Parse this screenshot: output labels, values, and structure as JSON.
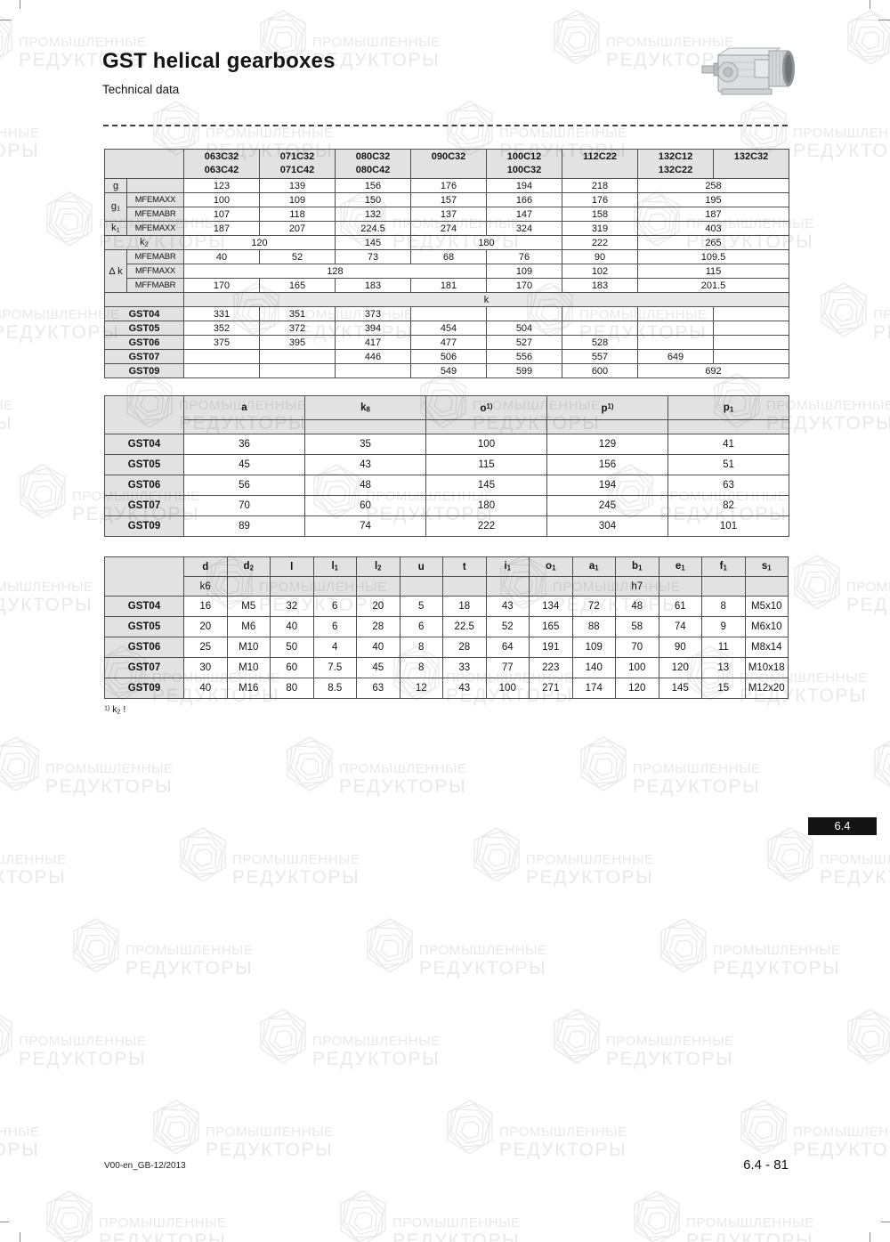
{
  "doc": {
    "title": "GST helical gearboxes",
    "subtitle": "Technical data"
  },
  "watermark": {
    "line1": "ПРОМЫШЛЕННЫЕ",
    "line2": "РЕДУКТОРЫ"
  },
  "colors": {
    "badge_bg": "#141414",
    "badge_text": "#ffffff",
    "header_fill": "#e1e1e1",
    "border": "#4f4f4f"
  },
  "table1": {
    "head": [
      [
        {
          "t": "",
          "cs": 2,
          "cls": "lab"
        },
        {
          "t": "063C32\n063C42"
        },
        {
          "t": "071C32\n071C42"
        },
        {
          "t": "080C32\n080C42"
        },
        {
          "t": "090C32"
        },
        {
          "t": "100C12\n100C32"
        },
        {
          "t": "112C22"
        },
        {
          "t": "132C12\n132C22"
        },
        {
          "t": "132C32"
        }
      ]
    ],
    "body": [
      [
        {
          "t": "g",
          "cls": "lab"
        },
        {
          "t": "",
          "cls": "lab"
        },
        {
          "t": "123"
        },
        {
          "t": "139"
        },
        {
          "t": "156"
        },
        {
          "t": "176"
        },
        {
          "t": "194"
        },
        {
          "t": "218"
        },
        {
          "t": "258",
          "cs": 2
        }
      ],
      [
        {
          "t": "g~1~",
          "cls": "lab",
          "rs": 2
        },
        {
          "t": "MFEMAXX",
          "cls": "lab s"
        },
        {
          "t": "100"
        },
        {
          "t": "109"
        },
        {
          "t": "150"
        },
        {
          "t": "157"
        },
        {
          "t": "166"
        },
        {
          "t": "176"
        },
        {
          "t": "195",
          "cs": 2
        }
      ],
      [
        {
          "t": "MFEMABR",
          "cls": "lab s"
        },
        {
          "t": "107"
        },
        {
          "t": "118"
        },
        {
          "t": "132"
        },
        {
          "t": "137"
        },
        {
          "t": "147"
        },
        {
          "t": "158"
        },
        {
          "t": "187",
          "cs": 2
        }
      ],
      [
        {
          "t": "k~1~",
          "cls": "lab"
        },
        {
          "t": "MFEMAXX",
          "cls": "lab s"
        },
        {
          "t": "187"
        },
        {
          "t": "207"
        },
        {
          "t": "224.5"
        },
        {
          "t": "274"
        },
        {
          "t": "324"
        },
        {
          "t": "319"
        },
        {
          "t": "403",
          "cs": 2
        }
      ],
      [
        {
          "t": "k~2~",
          "cls": "lab",
          "cs": 2
        },
        {
          "t": "120",
          "cs": 2
        },
        {
          "t": "145"
        },
        {
          "t": "180",
          "cs": 2
        },
        {
          "t": "222"
        },
        {
          "t": "265",
          "cs": 2
        }
      ],
      [
        {
          "t": "Δ k",
          "cls": "lab",
          "rs": 3
        },
        {
          "t": "MFEMABR",
          "cls": "lab s"
        },
        {
          "t": "40"
        },
        {
          "t": "52"
        },
        {
          "t": "73"
        },
        {
          "t": "68"
        },
        {
          "t": "76"
        },
        {
          "t": "90"
        },
        {
          "t": "109.5",
          "cs": 2
        }
      ],
      [
        {
          "t": "MFFMAXX",
          "cls": "lab s"
        },
        {
          "t": "128",
          "cs": 4
        },
        {
          "t": "109"
        },
        {
          "t": "102"
        },
        {
          "t": "115",
          "cs": 2
        }
      ],
      [
        {
          "t": "MFFMABR",
          "cls": "lab s"
        },
        {
          "t": "170"
        },
        {
          "t": "165"
        },
        {
          "t": "183"
        },
        {
          "t": "181"
        },
        {
          "t": "170"
        },
        {
          "t": "183"
        },
        {
          "t": "201.5",
          "cs": 2
        }
      ],
      [
        {
          "t": "",
          "cls": "lab",
          "cs": 2
        },
        {
          "t": "k",
          "cs": 8,
          "cls": "band"
        }
      ],
      [
        {
          "t": "GST04",
          "cls": "lab b",
          "cs": 2
        },
        {
          "t": "331"
        },
        {
          "t": "351"
        },
        {
          "t": "373"
        },
        {
          "t": ""
        },
        {
          "t": ""
        },
        {
          "t": ""
        },
        {
          "t": ""
        },
        {
          "t": ""
        }
      ],
      [
        {
          "t": "GST05",
          "cls": "lab b",
          "cs": 2
        },
        {
          "t": "352"
        },
        {
          "t": "372"
        },
        {
          "t": "394"
        },
        {
          "t": "454"
        },
        {
          "t": "504"
        },
        {
          "t": ""
        },
        {
          "t": ""
        },
        {
          "t": ""
        }
      ],
      [
        {
          "t": "GST06",
          "cls": "lab b",
          "cs": 2
        },
        {
          "t": "375"
        },
        {
          "t": "395"
        },
        {
          "t": "417"
        },
        {
          "t": "477"
        },
        {
          "t": "527"
        },
        {
          "t": "528"
        },
        {
          "t": ""
        },
        {
          "t": ""
        }
      ],
      [
        {
          "t": "GST07",
          "cls": "lab b",
          "cs": 2
        },
        {
          "t": ""
        },
        {
          "t": ""
        },
        {
          "t": "446"
        },
        {
          "t": "506"
        },
        {
          "t": "556"
        },
        {
          "t": "557"
        },
        {
          "t": "649"
        },
        {
          "t": ""
        }
      ],
      [
        {
          "t": "GST09",
          "cls": "lab b",
          "cs": 2
        },
        {
          "t": ""
        },
        {
          "t": ""
        },
        {
          "t": ""
        },
        {
          "t": "549"
        },
        {
          "t": "599"
        },
        {
          "t": "600"
        },
        {
          "t": "692",
          "cs": 2
        }
      ]
    ]
  },
  "table2": {
    "head": [
      [
        {
          "t": "",
          "cls": "lab",
          "rs": 2
        },
        {
          "t": "a"
        },
        {
          "t": "k~8~"
        },
        {
          "t": "o^1)^"
        },
        {
          "t": "p^1)^"
        },
        {
          "t": "p~1~"
        }
      ],
      [
        {
          "t": ""
        },
        {
          "t": ""
        },
        {
          "t": ""
        },
        {
          "t": ""
        },
        {
          "t": ""
        }
      ]
    ],
    "body": [
      [
        {
          "t": "GST04",
          "cls": "lab b"
        },
        {
          "t": "36"
        },
        {
          "t": "35"
        },
        {
          "t": "100"
        },
        {
          "t": "129"
        },
        {
          "t": "41"
        }
      ],
      [
        {
          "t": "GST05",
          "cls": "lab b"
        },
        {
          "t": "45"
        },
        {
          "t": "43"
        },
        {
          "t": "115"
        },
        {
          "t": "156"
        },
        {
          "t": "51"
        }
      ],
      [
        {
          "t": "GST06",
          "cls": "lab b"
        },
        {
          "t": "56"
        },
        {
          "t": "48"
        },
        {
          "t": "145"
        },
        {
          "t": "194"
        },
        {
          "t": "63"
        }
      ],
      [
        {
          "t": "GST07",
          "cls": "lab b"
        },
        {
          "t": "70"
        },
        {
          "t": "60"
        },
        {
          "t": "180"
        },
        {
          "t": "245"
        },
        {
          "t": "82"
        }
      ],
      [
        {
          "t": "GST09",
          "cls": "lab b"
        },
        {
          "t": "89"
        },
        {
          "t": "74"
        },
        {
          "t": "222"
        },
        {
          "t": "304"
        },
        {
          "t": "101"
        }
      ]
    ]
  },
  "table3": {
    "head": [
      [
        {
          "t": "",
          "cls": "lab",
          "rs": 2
        },
        {
          "t": "d"
        },
        {
          "t": "d~2~"
        },
        {
          "t": "l"
        },
        {
          "t": "l~1~"
        },
        {
          "t": "l~2~"
        },
        {
          "t": "u"
        },
        {
          "t": "t"
        },
        {
          "t": "i~1~"
        },
        {
          "t": "o~1~"
        },
        {
          "t": "a~1~"
        },
        {
          "t": "b~1~"
        },
        {
          "t": "e~1~"
        },
        {
          "t": "f~1~"
        },
        {
          "t": "s~1~"
        }
      ],
      [
        {
          "t": "k6"
        },
        {
          "t": ""
        },
        {
          "t": ""
        },
        {
          "t": ""
        },
        {
          "t": ""
        },
        {
          "t": ""
        },
        {
          "t": ""
        },
        {
          "t": ""
        },
        {
          "t": ""
        },
        {
          "t": ""
        },
        {
          "t": "h7"
        },
        {
          "t": ""
        },
        {
          "t": ""
        },
        {
          "t": ""
        }
      ]
    ],
    "body": [
      [
        {
          "t": "GST04",
          "cls": "lab b"
        },
        {
          "t": "16"
        },
        {
          "t": "M5"
        },
        {
          "t": "32"
        },
        {
          "t": "6"
        },
        {
          "t": "20"
        },
        {
          "t": "5"
        },
        {
          "t": "18"
        },
        {
          "t": "43"
        },
        {
          "t": "134"
        },
        {
          "t": "72"
        },
        {
          "t": "48"
        },
        {
          "t": "61"
        },
        {
          "t": "8"
        },
        {
          "t": "M5x10"
        }
      ],
      [
        {
          "t": "GST05",
          "cls": "lab b"
        },
        {
          "t": "20"
        },
        {
          "t": "M6"
        },
        {
          "t": "40"
        },
        {
          "t": "6"
        },
        {
          "t": "28"
        },
        {
          "t": "6"
        },
        {
          "t": "22.5"
        },
        {
          "t": "52"
        },
        {
          "t": "165"
        },
        {
          "t": "88"
        },
        {
          "t": "58"
        },
        {
          "t": "74"
        },
        {
          "t": "9"
        },
        {
          "t": "M6x10"
        }
      ],
      [
        {
          "t": "GST06",
          "cls": "lab b"
        },
        {
          "t": "25"
        },
        {
          "t": "M10"
        },
        {
          "t": "50"
        },
        {
          "t": "4"
        },
        {
          "t": "40"
        },
        {
          "t": "8"
        },
        {
          "t": "28"
        },
        {
          "t": "64"
        },
        {
          "t": "191"
        },
        {
          "t": "109"
        },
        {
          "t": "70"
        },
        {
          "t": "90"
        },
        {
          "t": "11"
        },
        {
          "t": "M8x14"
        }
      ],
      [
        {
          "t": "GST07",
          "cls": "lab b"
        },
        {
          "t": "30"
        },
        {
          "t": "M10"
        },
        {
          "t": "60"
        },
        {
          "t": "7.5"
        },
        {
          "t": "45"
        },
        {
          "t": "8"
        },
        {
          "t": "33"
        },
        {
          "t": "77"
        },
        {
          "t": "223"
        },
        {
          "t": "140"
        },
        {
          "t": "100"
        },
        {
          "t": "120"
        },
        {
          "t": "13"
        },
        {
          "t": "M10x18"
        }
      ],
      [
        {
          "t": "GST09",
          "cls": "lab b"
        },
        {
          "t": "40"
        },
        {
          "t": "M16"
        },
        {
          "t": "80"
        },
        {
          "t": "8.5"
        },
        {
          "t": "63"
        },
        {
          "t": "12"
        },
        {
          "t": "43"
        },
        {
          "t": "100"
        },
        {
          "t": "271"
        },
        {
          "t": "174"
        },
        {
          "t": "120"
        },
        {
          "t": "145"
        },
        {
          "t": "15"
        },
        {
          "t": "M12x20"
        }
      ]
    ]
  },
  "footnote": {
    "text": "^1)^ k~2~ !"
  },
  "page": {
    "section_badge": "6.4"
  },
  "footer": {
    "left": "V00-en_GB-12/2013",
    "right": "6.4 - 81"
  }
}
